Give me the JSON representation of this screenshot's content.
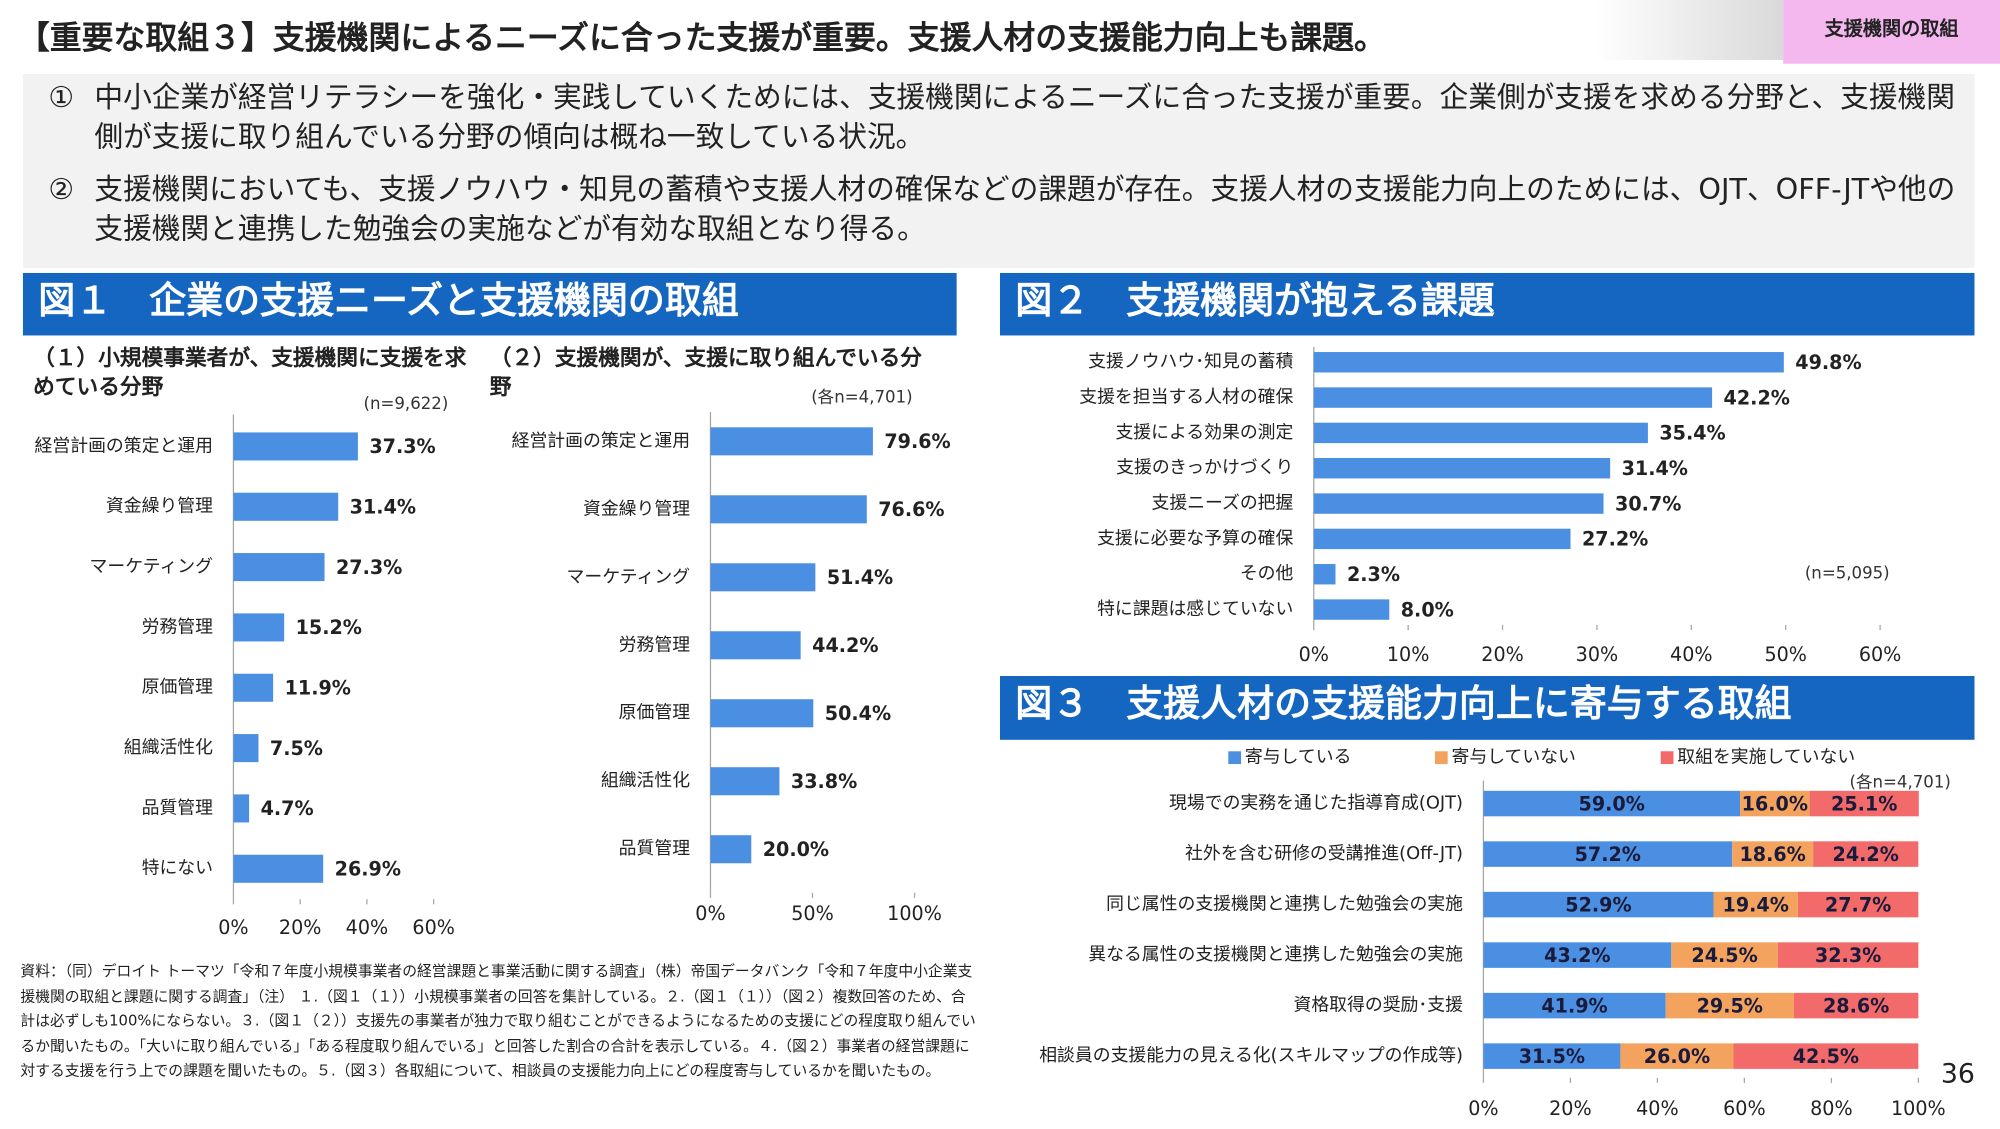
{
  "header": {
    "title": "【重要な取組３】支援機関によるニーズに合った支援が重要。支援人材の支援能力向上も課題。",
    "tag": "支援機関の取組"
  },
  "bullets": [
    {
      "marker": "①",
      "text": "中小企業が経営リテラシーを強化・実践していくためには、支援機関によるニーズに合った支援が重要。企業側が支援を求める分野と、支援機関側が支援に取り組んでいる分野の傾向は概ね一致している状況。"
    },
    {
      "marker": "②",
      "text": "支援機関においても、支援ノウハウ・知見の蓄積や支援人材の確保などの課題が存在。支援人材の支援能力向上のためには、OJT、OFF-JTや他の支援機関と連携した勉強会の実施などが有効な取組となり得る。"
    }
  ],
  "figure1_title": "図１　企業の支援ニーズと支援機関の取組",
  "chart_data": [
    {
      "type": "bar",
      "orientation": "horizontal",
      "title": "（１）小規模事業者が、支援機関に支援を求めている分野",
      "note": "(n=9,622)",
      "categories": [
        "経営計画の策定と運用",
        "資金繰り管理",
        "マーケティング",
        "労務管理",
        "原価管理",
        "組織活性化",
        "品質管理",
        "特にない"
      ],
      "values": [
        37.3,
        31.4,
        27.3,
        15.2,
        11.9,
        7.5,
        4.7,
        26.9
      ],
      "value_labels": [
        "37.3%",
        "31.4%",
        "27.3%",
        "15.2%",
        "11.9%",
        "7.5%",
        "4.7%",
        "26.9%"
      ],
      "color": "#4a8fe2",
      "xlim": [
        0,
        60
      ],
      "xticks": [
        {
          "value": 0,
          "label": "0%"
        },
        {
          "value": 20,
          "label": "20%"
        },
        {
          "value": 40,
          "label": "40%"
        },
        {
          "value": 60,
          "label": "60%"
        }
      ]
    },
    {
      "type": "bar",
      "orientation": "horizontal",
      "title": "（２）支援機関が、支援に取り組んでいる分野",
      "note": "(各n=4,701)",
      "categories": [
        "経営計画の策定と運用",
        "資金繰り管理",
        "マーケティング",
        "労務管理",
        "原価管理",
        "組織活性化",
        "品質管理"
      ],
      "values": [
        79.6,
        76.6,
        51.4,
        44.2,
        50.4,
        33.8,
        20.0
      ],
      "value_labels": [
        "79.6%",
        "76.6%",
        "51.4%",
        "44.2%",
        "50.4%",
        "33.8%",
        "20.0%"
      ],
      "color": "#4a8fe2",
      "xlim": [
        0,
        100
      ],
      "xticks": [
        {
          "value": 0,
          "label": "0%"
        },
        {
          "value": 50,
          "label": "50%"
        },
        {
          "value": 100,
          "label": "100%"
        }
      ]
    },
    {
      "type": "bar",
      "orientation": "horizontal",
      "title": "図２　支援機関が抱える課題",
      "note": "(n=5,095)",
      "categories": [
        "支援ノウハウ･知見の蓄積",
        "支援を担当する人材の確保",
        "支援による効果の測定",
        "支援のきっかけづくり",
        "支援ニーズの把握",
        "支援に必要な予算の確保",
        "その他",
        "特に課題は感じていない"
      ],
      "values": [
        49.8,
        42.2,
        35.4,
        31.4,
        30.7,
        27.2,
        2.3,
        8.0
      ],
      "value_labels": [
        "49.8%",
        "42.2%",
        "35.4%",
        "31.4%",
        "30.7%",
        "27.2%",
        "2.3%",
        "8.0%"
      ],
      "color": "#4a8fe2",
      "xlim": [
        0,
        60
      ],
      "xticks": [
        {
          "value": 0,
          "label": "0%"
        },
        {
          "value": 10,
          "label": "10%"
        },
        {
          "value": 20,
          "label": "20%"
        },
        {
          "value": 30,
          "label": "30%"
        },
        {
          "value": 40,
          "label": "40%"
        },
        {
          "value": 50,
          "label": "50%"
        },
        {
          "value": 60,
          "label": "60%"
        }
      ]
    },
    {
      "type": "bar",
      "orientation": "horizontal",
      "stacked": true,
      "title": "図３　支援人材の支援能力向上に寄与する取組",
      "note": "(各n=4,701)",
      "categories": [
        "現場での実務を通じた指導育成(OJT)",
        "社外を含む研修の受講推進(Off-JT)",
        "同じ属性の支援機関と連携した勉強会の実施",
        "異なる属性の支援機関と連携した勉強会の実施",
        "資格取得の奨励･支援",
        "相談員の支援能力の見える化(スキルマップの作成等)"
      ],
      "series": [
        {
          "name": "寄与している",
          "color": "#4a8fe2",
          "values": [
            59.0,
            57.2,
            52.9,
            43.2,
            41.9,
            31.5
          ],
          "value_labels": [
            "59.0%",
            "57.2%",
            "52.9%",
            "43.2%",
            "41.9%",
            "31.5%"
          ]
        },
        {
          "name": "寄与していない",
          "color": "#f4a35e",
          "values": [
            16.0,
            18.6,
            19.4,
            24.5,
            29.5,
            26.0
          ],
          "value_labels": [
            "16.0%",
            "18.6%",
            "19.4%",
            "24.5%",
            "29.5%",
            "26.0%"
          ]
        },
        {
          "name": "取組を実施していない",
          "color": "#f26a6a",
          "values": [
            25.1,
            24.2,
            27.7,
            32.3,
            28.6,
            42.5
          ],
          "value_labels": [
            "25.1%",
            "24.2%",
            "27.7%",
            "32.3%",
            "28.6%",
            "42.5%"
          ]
        }
      ],
      "xlim": [
        0,
        100
      ],
      "xticks": [
        {
          "value": 0,
          "label": "0%"
        },
        {
          "value": 20,
          "label": "20%"
        },
        {
          "value": 40,
          "label": "40%"
        },
        {
          "value": 60,
          "label": "60%"
        },
        {
          "value": 80,
          "label": "80%"
        },
        {
          "value": 100,
          "label": "100%"
        }
      ]
    }
  ],
  "source_note": "資料：（同）デロイト トーマツ「令和７年度小規模事業者の経営課題と事業活動に関する調査」（株）帝国データバンク「令和７年度中小企業支援機関の取組と課題に関する調査」（注） １.（図１（１））小規模事業者の回答を集計している。２.（図１（１））（図２）複数回答のため、合計は必ずしも100%にならない。３.（図１（２））支援先の事業者が独力で取り組むことができるようになるための支援にどの程度取り組んでいるか聞いたもの。「大いに取り組んでいる」「ある程度取り組んでいる」と回答した割合の合計を表示している。４.（図２）事業者の経営課題に対する支援を行う上での課題を聞いたもの。５.（図３）各取組について、相談員の支援能力向上にどの程度寄与しているかを聞いたもの。",
  "page_number": "36"
}
